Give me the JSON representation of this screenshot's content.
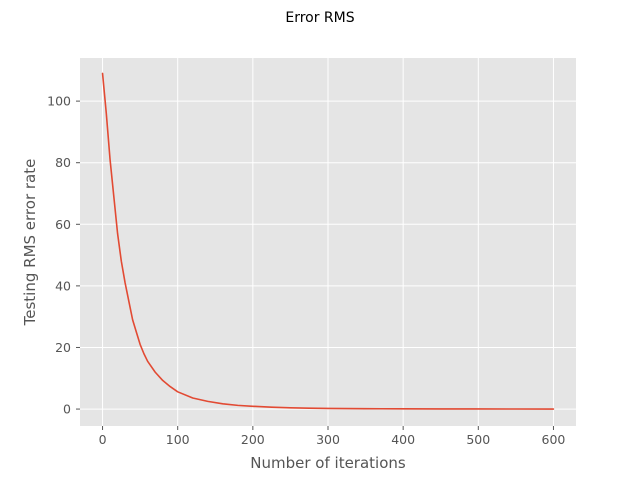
{
  "chart_data": {
    "type": "line",
    "title": "Error RMS",
    "xlabel": "Number of iterations",
    "ylabel": "Testing RMS error rate",
    "xlim": [
      -30,
      630
    ],
    "ylim": [
      -5.5,
      114
    ],
    "xticks": [
      0,
      100,
      200,
      300,
      400,
      500,
      600
    ],
    "yticks": [
      0,
      20,
      40,
      60,
      80,
      100
    ],
    "xtick_labels": [
      "0",
      "100",
      "200",
      "300",
      "400",
      "500",
      "600"
    ],
    "ytick_labels": [
      "0",
      "20",
      "40",
      "60",
      "80",
      "100"
    ],
    "grid": true,
    "style": "ggplot",
    "colors": {
      "line": "#E24A33",
      "axes_bg": "#E5E5E5",
      "grid": "#FFFFFF",
      "tick": "#555555"
    },
    "series": [
      {
        "x": [
          0,
          5,
          10,
          15,
          20,
          25,
          30,
          35,
          40,
          45,
          50,
          55,
          60,
          70,
          80,
          90,
          100,
          120,
          140,
          160,
          180,
          200,
          225,
          250,
          275,
          300,
          350,
          400,
          450,
          500,
          550,
          600
        ],
        "y": [
          109,
          96,
          81,
          69,
          57,
          48,
          41,
          35,
          29,
          25,
          21,
          18,
          15.5,
          12,
          9.3,
          7.3,
          5.6,
          3.6,
          2.5,
          1.7,
          1.2,
          0.9,
          0.6,
          0.4,
          0.3,
          0.2,
          0.12,
          0.08,
          0.05,
          0.03,
          0.02,
          0.01
        ]
      }
    ]
  }
}
